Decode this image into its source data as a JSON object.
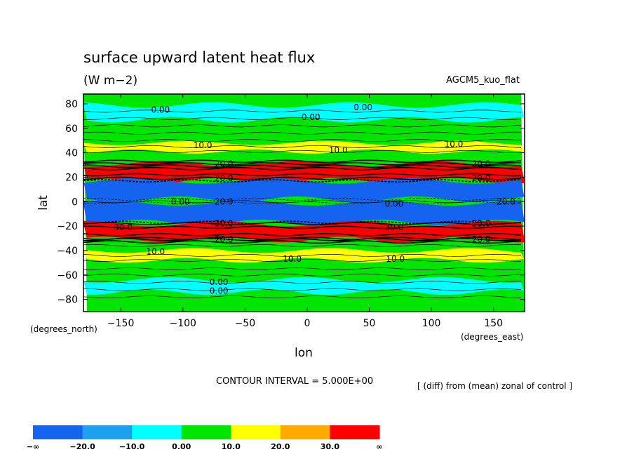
{
  "chart_data": {
    "type": "heatmap",
    "title": "surface upward latent heat flux",
    "subtitle": "(W m−2)",
    "model_label": "AGCM5_kuo_flat",
    "xlabel": "lon",
    "ylabel": "lat",
    "x_units": "(degrees_east)",
    "y_units": "(degrees_north)",
    "xlim": [
      -180,
      175
    ],
    "ylim": [
      -90,
      88
    ],
    "x_ticks": [
      "−150",
      "−100",
      "−50",
      "0",
      "50",
      "100",
      "150"
    ],
    "x_tick_values": [
      -150,
      -100,
      -50,
      0,
      50,
      100,
      150
    ],
    "y_ticks": [
      "80",
      "60",
      "40",
      "20",
      "0",
      "−20",
      "−40",
      "−60",
      "−80"
    ],
    "y_tick_values": [
      80,
      60,
      40,
      20,
      0,
      -20,
      -40,
      -60,
      -80
    ],
    "contour_interval_text": "CONTOUR INTERVAL = 5.000E+00",
    "note": "[ (diff) from (mean) zonal of control ]",
    "colorbar": {
      "labels": [
        "−∞",
        "−20.0",
        "−10.0",
        "0.00",
        "10.0",
        "20.0",
        "30.0",
        "∞"
      ],
      "colors": [
        "#1464f0",
        "#1ea0f0",
        "#00ffff",
        "#00e600",
        "#ffff00",
        "#ffaa00",
        "#ff0000"
      ]
    },
    "bands": [
      {
        "lat_top": 88,
        "lat_bot": -90,
        "color": "#00e600"
      },
      {
        "lat_top": 79,
        "lat_bot": 67,
        "color": "#00ffff"
      },
      {
        "lat_top": 48,
        "lat_bot": 41,
        "color": "#ffff00"
      },
      {
        "lat_top": 31,
        "lat_bot": 17,
        "color": "#ff0000"
      },
      {
        "lat_top": 17,
        "lat_bot": 2,
        "color": "#1464f0"
      },
      {
        "lat_top": -1,
        "lat_bot": -17,
        "color": "#1464f0"
      },
      {
        "lat_top": -18,
        "lat_bot": -31,
        "color": "#ff0000"
      },
      {
        "lat_top": -40,
        "lat_bot": -48,
        "color": "#ffff00"
      },
      {
        "lat_top": -64,
        "lat_bot": -74,
        "color": "#00ffff"
      }
    ],
    "contour_labels": [
      {
        "text": "0.00",
        "lon": -118,
        "lat": 75
      },
      {
        "text": "0.00",
        "lon": 45,
        "lat": 77
      },
      {
        "text": "0.00",
        "lon": 3,
        "lat": 69
      },
      {
        "text": "10.0",
        "lon": -84,
        "lat": 46
      },
      {
        "text": "10.0",
        "lon": 25,
        "lat": 42
      },
      {
        "text": "10.0",
        "lon": 118,
        "lat": 47
      },
      {
        "text": "10.0",
        "lon": -122,
        "lat": -41
      },
      {
        "text": "10.0",
        "lon": -12,
        "lat": -47
      },
      {
        "text": "10.0",
        "lon": 71,
        "lat": -47
      },
      {
        "text": "30.0",
        "lon": -148,
        "lat": -21
      },
      {
        "text": "30.0",
        "lon": 70,
        "lat": -21
      },
      {
        "text": "0.00",
        "lon": -102,
        "lat": 0
      },
      {
        "text": "0.00",
        "lon": 70,
        "lat": -2
      },
      {
        "text": "0.00",
        "lon": -71,
        "lat": -66
      },
      {
        "text": "0.00",
        "lon": -71,
        "lat": -73
      },
      {
        "text": "20.0",
        "lon": -67,
        "lat": 31
      },
      {
        "text": "20.0",
        "lon": 140,
        "lat": 31
      },
      {
        "text": "20.0",
        "lon": -67,
        "lat": 19
      },
      {
        "text": "20.0",
        "lon": 140,
        "lat": 19
      },
      {
        "text": "20.0",
        "lon": -67,
        "lat": 0
      },
      {
        "text": "20.0",
        "lon": 160,
        "lat": 0
      },
      {
        "text": "20.0",
        "lon": -67,
        "lat": -18
      },
      {
        "text": "20.0",
        "lon": 140,
        "lat": -18
      },
      {
        "text": "20.0",
        "lon": -67,
        "lat": -31
      },
      {
        "text": "20.0",
        "lon": 140,
        "lat": -31
      }
    ]
  }
}
